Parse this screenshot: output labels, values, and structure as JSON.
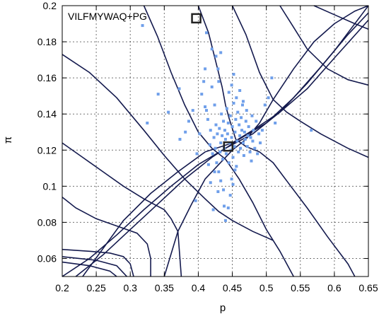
{
  "chart_data": {
    "type": "scatter",
    "title": "VILFMYWAQ+PG",
    "xlabel": "p",
    "ylabel": "π",
    "xlim": [
      0.2,
      0.65
    ],
    "ylim": [
      0.05,
      0.2
    ],
    "xticks": [
      "0.2",
      "0.25",
      "0.3",
      "0.35",
      "0.4",
      "0.45",
      "0.5",
      "0.55",
      "0.6",
      "0.65"
    ],
    "yticks": [
      "0.06",
      "0.08",
      "0.1",
      "0.12",
      "0.14",
      "0.16",
      "0.18",
      "0.2"
    ],
    "grid": true,
    "colors": {
      "points": "#6f9fea",
      "curves": "#141a4e",
      "frame": "#000000"
    },
    "markers": [
      {
        "name": "open square",
        "x": 0.397,
        "y": 0.193
      },
      {
        "name": "open square",
        "x": 0.444,
        "y": 0.122
      }
    ],
    "series": [
      {
        "type": "scatter",
        "points": [
          [
            0.318,
            0.189
          ],
          [
            0.325,
            0.135
          ],
          [
            0.341,
            0.151
          ],
          [
            0.356,
            0.141
          ],
          [
            0.372,
            0.154
          ],
          [
            0.373,
            0.126
          ],
          [
            0.381,
            0.13
          ],
          [
            0.386,
            0.136
          ],
          [
            0.392,
            0.142
          ],
          [
            0.396,
            0.092
          ],
          [
            0.398,
            0.118
          ],
          [
            0.402,
            0.129
          ],
          [
            0.405,
            0.151
          ],
          [
            0.408,
            0.158
          ],
          [
            0.41,
            0.165
          ],
          [
            0.412,
            0.142
          ],
          [
            0.414,
            0.137
          ],
          [
            0.415,
            0.112
          ],
          [
            0.417,
            0.123
          ],
          [
            0.418,
            0.131
          ],
          [
            0.42,
            0.155
          ],
          [
            0.421,
            0.118
          ],
          [
            0.422,
            0.087
          ],
          [
            0.423,
            0.127
          ],
          [
            0.424,
            0.145
          ],
          [
            0.425,
            0.121
          ],
          [
            0.426,
            0.134
          ],
          [
            0.427,
            0.113
          ],
          [
            0.428,
            0.129
          ],
          [
            0.429,
            0.165
          ],
          [
            0.43,
            0.108
          ],
          [
            0.431,
            0.132
          ],
          [
            0.432,
            0.119
          ],
          [
            0.433,
            0.124
          ],
          [
            0.434,
            0.14
          ],
          [
            0.435,
            0.128
          ],
          [
            0.436,
            0.115
          ],
          [
            0.437,
            0.136
          ],
          [
            0.438,
            0.121
          ],
          [
            0.438,
            0.089
          ],
          [
            0.439,
            0.131
          ],
          [
            0.44,
            0.126
          ],
          [
            0.441,
            0.118
          ],
          [
            0.442,
            0.143
          ],
          [
            0.443,
            0.129
          ],
          [
            0.444,
            0.135
          ],
          [
            0.445,
            0.113
          ],
          [
            0.446,
            0.124
          ],
          [
            0.447,
            0.139
          ],
          [
            0.448,
            0.12
          ],
          [
            0.449,
            0.127
          ],
          [
            0.45,
            0.133
          ],
          [
            0.451,
            0.116
          ],
          [
            0.452,
            0.146
          ],
          [
            0.453,
            0.122
          ],
          [
            0.454,
            0.13
          ],
          [
            0.455,
            0.137
          ],
          [
            0.456,
            0.111
          ],
          [
            0.457,
            0.125
          ],
          [
            0.458,
            0.141
          ],
          [
            0.459,
            0.119
          ],
          [
            0.46,
            0.134
          ],
          [
            0.461,
            0.128
          ],
          [
            0.462,
            0.121
          ],
          [
            0.463,
            0.138
          ],
          [
            0.464,
            0.131
          ],
          [
            0.465,
            0.145
          ],
          [
            0.466,
            0.124
          ],
          [
            0.467,
            0.117
          ],
          [
            0.468,
            0.13
          ],
          [
            0.469,
            0.126
          ],
          [
            0.47,
            0.136
          ],
          [
            0.471,
            0.142
          ],
          [
            0.472,
            0.122
          ],
          [
            0.473,
            0.128
          ],
          [
            0.474,
            0.133
          ],
          [
            0.476,
            0.119
          ],
          [
            0.477,
            0.127
          ],
          [
            0.478,
            0.114
          ],
          [
            0.479,
            0.139
          ],
          [
            0.48,
            0.125
          ],
          [
            0.481,
            0.131
          ],
          [
            0.483,
            0.121
          ],
          [
            0.485,
            0.136
          ],
          [
            0.487,
            0.118
          ],
          [
            0.489,
            0.129
          ],
          [
            0.491,
            0.124
          ],
          [
            0.494,
            0.131
          ],
          [
            0.498,
            0.145
          ],
          [
            0.503,
            0.149
          ],
          [
            0.508,
            0.16
          ],
          [
            0.513,
            0.135
          ],
          [
            0.566,
            0.131
          ],
          [
            0.44,
            0.081
          ],
          [
            0.444,
            0.088
          ],
          [
            0.447,
            0.095
          ],
          [
            0.449,
            0.104
          ],
          [
            0.451,
            0.101
          ],
          [
            0.454,
            0.109
          ],
          [
            0.437,
            0.098
          ],
          [
            0.433,
            0.103
          ],
          [
            0.429,
            0.097
          ],
          [
            0.424,
            0.108
          ],
          [
            0.418,
            0.102
          ],
          [
            0.445,
            0.152
          ],
          [
            0.449,
            0.156
          ],
          [
            0.452,
            0.162
          ],
          [
            0.456,
            0.149
          ],
          [
            0.461,
            0.153
          ],
          [
            0.466,
            0.147
          ],
          [
            0.43,
            0.158
          ],
          [
            0.426,
            0.172
          ],
          [
            0.433,
            0.174
          ],
          [
            0.42,
            0.176
          ],
          [
            0.412,
            0.185
          ],
          [
            0.41,
            0.144
          ]
        ]
      },
      {
        "type": "line",
        "curves": [
          [
            [
              0.2,
              0.173
            ],
            [
              0.24,
              0.163
            ],
            [
              0.28,
              0.149
            ],
            [
              0.32,
              0.131
            ],
            [
              0.35,
              0.117
            ],
            [
              0.38,
              0.104
            ],
            [
              0.41,
              0.093
            ],
            [
              0.43,
              0.086
            ],
            [
              0.45,
              0.081
            ],
            [
              0.48,
              0.075
            ],
            [
              0.51,
              0.07
            ]
          ],
          [
            [
              0.2,
              0.124
            ],
            [
              0.23,
              0.116
            ],
            [
              0.26,
              0.108
            ],
            [
              0.29,
              0.1
            ],
            [
              0.32,
              0.093
            ],
            [
              0.35,
              0.087
            ],
            [
              0.36,
              0.082
            ],
            [
              0.37,
              0.075
            ],
            [
              0.375,
              0.05
            ]
          ],
          [
            [
              0.2,
              0.094
            ],
            [
              0.22,
              0.088
            ],
            [
              0.25,
              0.082
            ],
            [
              0.28,
              0.078
            ],
            [
              0.31,
              0.074
            ],
            [
              0.325,
              0.068
            ],
            [
              0.33,
              0.06
            ],
            [
              0.33,
              0.05
            ]
          ],
          [
            [
              0.2,
              0.065
            ],
            [
              0.24,
              0.064
            ],
            [
              0.27,
              0.063
            ],
            [
              0.29,
              0.061
            ],
            [
              0.3,
              0.057
            ],
            [
              0.305,
              0.05
            ]
          ],
          [
            [
              0.2,
              0.061
            ],
            [
              0.25,
              0.059
            ],
            [
              0.28,
              0.056
            ],
            [
              0.29,
              0.052
            ],
            [
              0.295,
              0.05
            ]
          ],
          [
            [
              0.2,
              0.058
            ],
            [
              0.24,
              0.056
            ],
            [
              0.27,
              0.053
            ],
            [
              0.28,
              0.05
            ]
          ],
          [
            [
              0.23,
              0.05
            ],
            [
              0.29,
              0.081
            ],
            [
              0.33,
              0.096
            ],
            [
              0.37,
              0.108
            ],
            [
              0.41,
              0.119
            ],
            [
              0.45,
              0.124
            ],
            [
              0.48,
              0.131
            ],
            [
              0.52,
              0.141
            ],
            [
              0.56,
              0.154
            ],
            [
              0.6,
              0.171
            ],
            [
              0.65,
              0.192
            ]
          ],
          [
            [
              0.32,
              0.2
            ],
            [
              0.34,
              0.183
            ],
            [
              0.36,
              0.163
            ],
            [
              0.38,
              0.145
            ],
            [
              0.4,
              0.13
            ],
            [
              0.42,
              0.121
            ],
            [
              0.44,
              0.115
            ],
            [
              0.46,
              0.104
            ],
            [
              0.48,
              0.091
            ],
            [
              0.5,
              0.076
            ],
            [
              0.52,
              0.064
            ],
            [
              0.54,
              0.05
            ]
          ],
          [
            [
              0.45,
              0.2
            ],
            [
              0.47,
              0.184
            ],
            [
              0.49,
              0.163
            ],
            [
              0.51,
              0.148
            ],
            [
              0.53,
              0.141
            ],
            [
              0.55,
              0.136
            ],
            [
              0.58,
              0.129
            ],
            [
              0.62,
              0.121
            ],
            [
              0.65,
              0.116
            ]
          ],
          [
            [
              0.52,
              0.2
            ],
            [
              0.54,
              0.188
            ],
            [
              0.56,
              0.176
            ],
            [
              0.59,
              0.165
            ],
            [
              0.62,
              0.159
            ],
            [
              0.65,
              0.156
            ]
          ],
          [
            [
              0.57,
              0.2
            ],
            [
              0.6,
              0.195
            ],
            [
              0.63,
              0.19
            ],
            [
              0.65,
              0.187
            ]
          ],
          [
            [
              0.35,
              0.05
            ],
            [
              0.37,
              0.075
            ],
            [
              0.39,
              0.09
            ],
            [
              0.41,
              0.104
            ],
            [
              0.43,
              0.112
            ],
            [
              0.45,
              0.12
            ],
            [
              0.47,
              0.126
            ],
            [
              0.49,
              0.135
            ],
            [
              0.51,
              0.148
            ],
            [
              0.54,
              0.165
            ],
            [
              0.57,
              0.18
            ],
            [
              0.6,
              0.19
            ],
            [
              0.63,
              0.197
            ],
            [
              0.65,
              0.2
            ]
          ],
          [
            [
              0.4,
              0.2
            ],
            [
              0.415,
              0.185
            ],
            [
              0.425,
              0.17
            ],
            [
              0.435,
              0.155
            ],
            [
              0.44,
              0.145
            ],
            [
              0.445,
              0.138
            ],
            [
              0.455,
              0.126
            ],
            [
              0.47,
              0.122
            ],
            [
              0.49,
              0.119
            ],
            [
              0.51,
              0.113
            ],
            [
              0.53,
              0.103
            ],
            [
              0.56,
              0.088
            ],
            [
              0.59,
              0.072
            ],
            [
              0.62,
              0.057
            ],
            [
              0.63,
              0.05
            ]
          ],
          [
            [
              0.2,
              0.05
            ],
            [
              0.24,
              0.06
            ],
            [
              0.28,
              0.073
            ],
            [
              0.32,
              0.087
            ],
            [
              0.36,
              0.1
            ],
            [
              0.4,
              0.112
            ],
            [
              0.44,
              0.121
            ],
            [
              0.48,
              0.129
            ],
            [
              0.52,
              0.141
            ],
            [
              0.56,
              0.157
            ],
            [
              0.6,
              0.175
            ],
            [
              0.64,
              0.195
            ],
            [
              0.65,
              0.2
            ]
          ],
          [
            [
              0.22,
              0.05
            ],
            [
              0.26,
              0.062
            ],
            [
              0.3,
              0.076
            ],
            [
              0.34,
              0.09
            ],
            [
              0.38,
              0.104
            ],
            [
              0.42,
              0.116
            ],
            [
              0.46,
              0.126
            ],
            [
              0.5,
              0.135
            ],
            [
              0.54,
              0.149
            ],
            [
              0.58,
              0.166
            ],
            [
              0.62,
              0.184
            ],
            [
              0.65,
              0.196
            ]
          ]
        ]
      }
    ]
  }
}
